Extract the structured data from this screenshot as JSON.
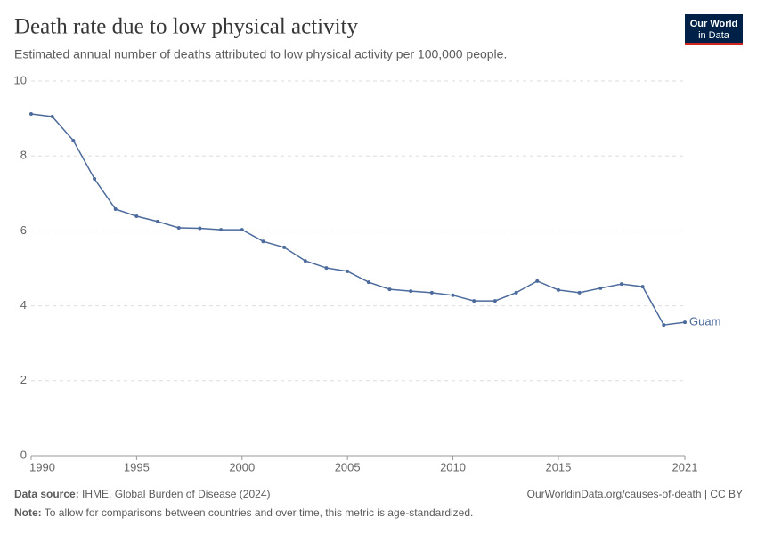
{
  "chart_data": {
    "type": "line",
    "title": "Death rate due to low physical activity",
    "subtitle": "Estimated annual number of deaths attributed to low physical activity per 100,000 people.",
    "x": [
      1990,
      1991,
      1992,
      1993,
      1994,
      1995,
      1996,
      1997,
      1998,
      1999,
      2000,
      2001,
      2002,
      2003,
      2004,
      2005,
      2006,
      2007,
      2008,
      2009,
      2010,
      2011,
      2012,
      2013,
      2014,
      2015,
      2016,
      2017,
      2018,
      2019,
      2020,
      2021
    ],
    "series": [
      {
        "name": "Guam",
        "color": "#4c6a9c",
        "values": [
          9.12,
          9.05,
          8.41,
          7.39,
          6.58,
          6.39,
          6.25,
          6.08,
          6.07,
          6.03,
          6.03,
          5.72,
          5.56,
          5.2,
          5.01,
          4.92,
          4.63,
          4.44,
          4.39,
          4.35,
          4.28,
          4.13,
          4.13,
          4.35,
          4.66,
          4.42,
          4.35,
          4.47,
          4.58,
          4.51,
          3.49,
          3.56
        ]
      }
    ],
    "xlim": [
      1990,
      2021
    ],
    "xticks": [
      1990,
      1995,
      2000,
      2005,
      2010,
      2015,
      2021
    ],
    "ylim": [
      0,
      10
    ],
    "yticks": [
      0,
      2,
      4,
      6,
      8,
      10
    ],
    "grid": true
  },
  "logo": {
    "line1": "Our World",
    "line2": "in Data"
  },
  "footer": {
    "source_label": "Data source:",
    "source": "IHME, Global Burden of Disease (2024)",
    "link": "OurWorldinData.org/causes-of-death | CC BY",
    "note_label": "Note:",
    "note": "To allow for comparisons between countries and over time, this metric is age-standardized."
  }
}
